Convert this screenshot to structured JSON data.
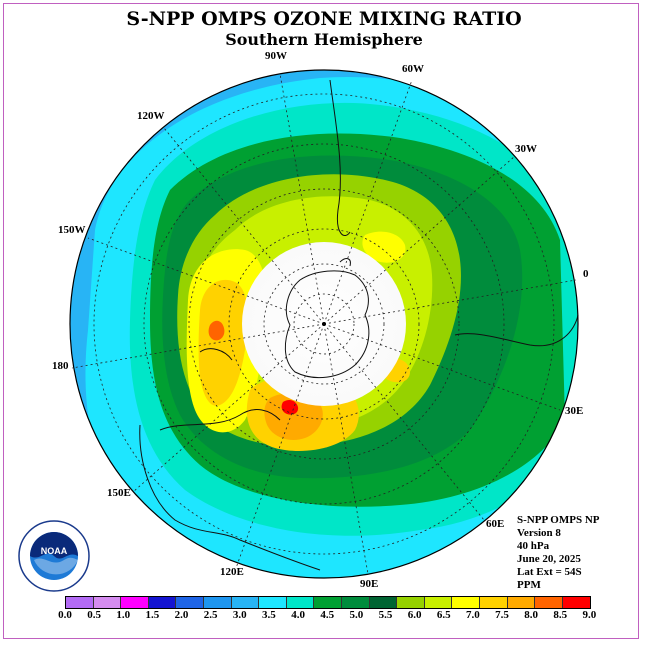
{
  "title": "S-NPP OMPS OZONE MIXING RATIO",
  "subtitle": "Southern Hemisphere",
  "longitude_labels": {
    "w90": "90W",
    "w60": "60W",
    "w30": "30W",
    "e0": "0",
    "w120": "120W",
    "w150": "150W",
    "e180": "180",
    "e30": "30E",
    "e60": "60E",
    "e90": "90E",
    "e120": "120E",
    "e150": "150E"
  },
  "info": {
    "line1": "S-NPP OMPS NP",
    "line2": "Version 8",
    "line3": "40 hPa",
    "line4": "June 20, 2025",
    "line5": "Lat Ext = 54S",
    "line6": "PPM"
  },
  "logo": {
    "text": "NOAA",
    "ring_text": "NATIONAL OCEANIC AND ATMOSPHERIC ADMINISTRATION · U.S. DEPARTMENT OF COMMERCE"
  },
  "colorbar": {
    "ticks": [
      "0.0",
      "0.5",
      "1.0",
      "1.5",
      "2.0",
      "2.5",
      "3.0",
      "3.5",
      "4.0",
      "4.5",
      "5.0",
      "5.5",
      "6.0",
      "6.5",
      "7.0",
      "7.5",
      "8.0",
      "8.5",
      "9.0"
    ],
    "colors": [
      "#b36bf5",
      "#d58cf0",
      "#ff00ff",
      "#1414d2",
      "#1e64e6",
      "#1e96f0",
      "#28b4f5",
      "#1ee6ff",
      "#00e6c8",
      "#00a032",
      "#008c3c",
      "#006432",
      "#96d200",
      "#c8f000",
      "#ffff00",
      "#ffd200",
      "#ffaa00",
      "#ff6400",
      "#ff0000",
      "#8c6446"
    ]
  },
  "chart_data": {
    "type": "map",
    "projection": "south polar stereographic",
    "variable": "ozone mixing ratio",
    "units": "PPM",
    "pressure_level": "40 hPa",
    "date": "June 20, 2025",
    "lat_extent": "54S",
    "color_scale_range": [
      0.0,
      9.0
    ],
    "color_scale_step": 0.5,
    "no_data_region": "polar night (circle around the pole)",
    "max_region": "near 120E-150E, values 8.0-8.5 ppm",
    "min_region": "outer ring near 150W-150E, values 3.0-3.5 ppm"
  }
}
